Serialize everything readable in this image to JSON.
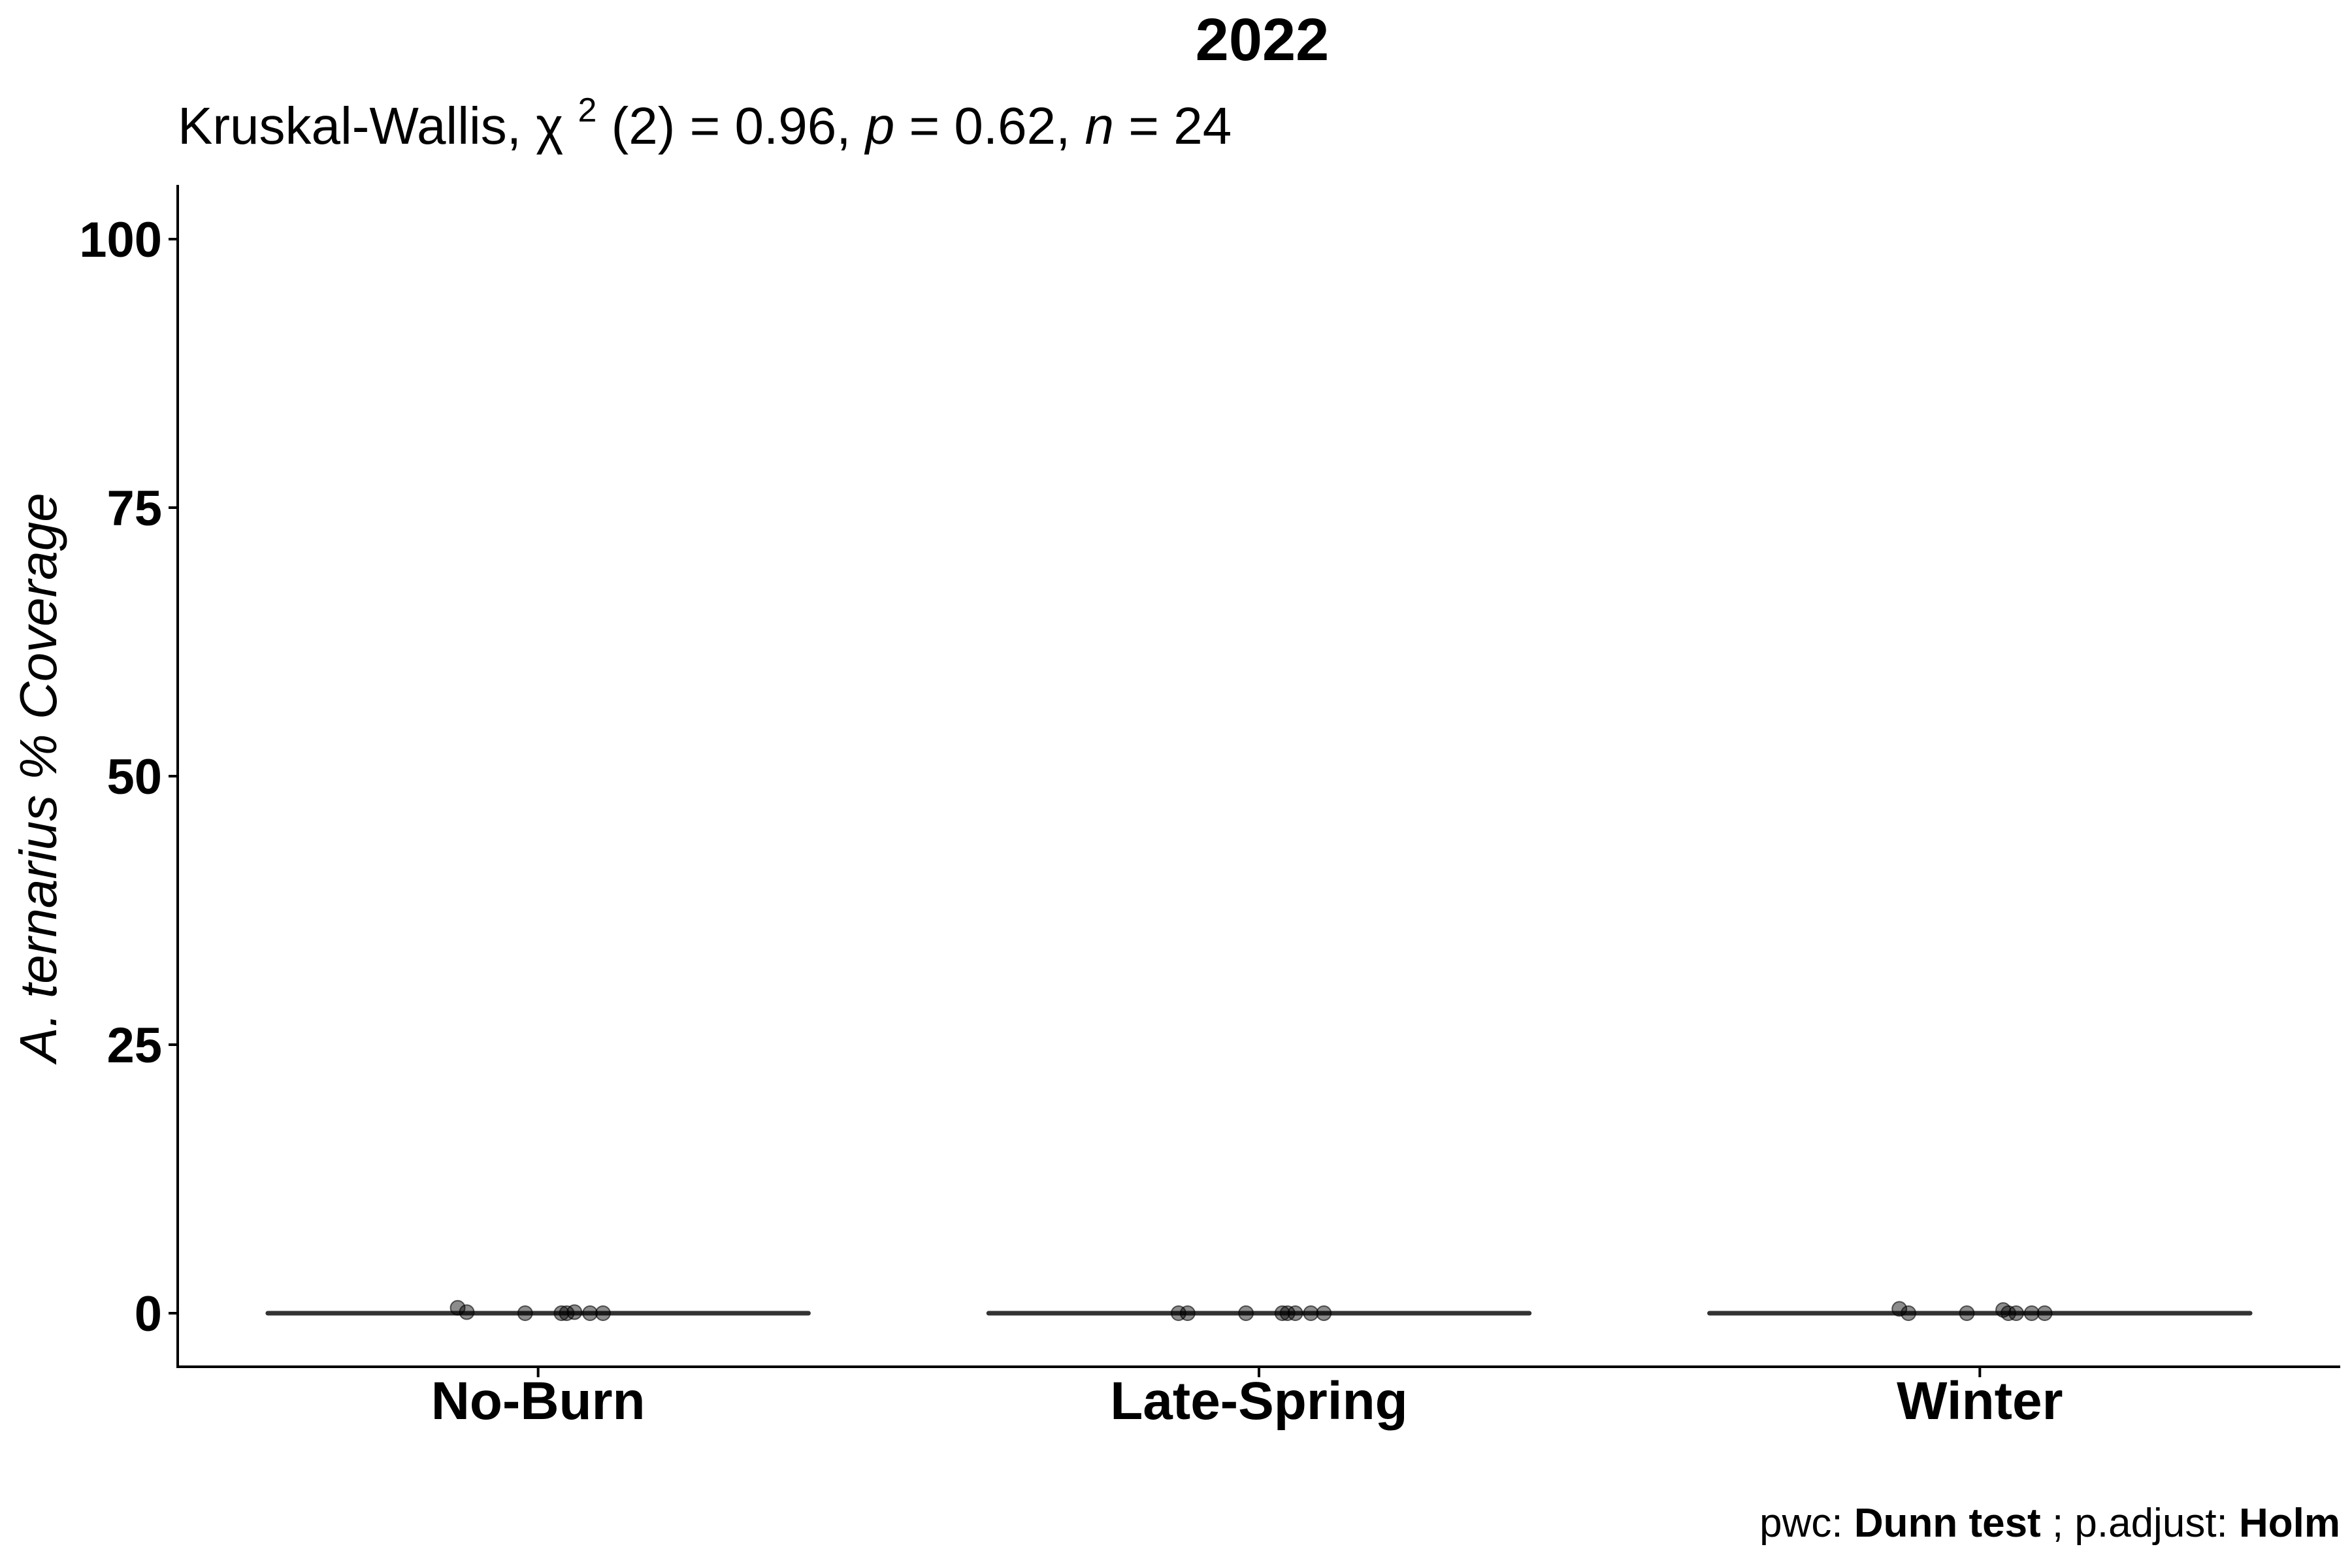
{
  "chart_data": {
    "type": "scatter",
    "title": "2022",
    "subtitle": {
      "prefix": "Kruskal-Wallis, ",
      "chi": "χ",
      "chi_sup": "2",
      "chi_rest": "(2) = 0.96, ",
      "p_symbol": "p",
      "p_rest": " = 0.62, ",
      "n_symbol": "n",
      "n_rest": " = 24"
    },
    "ylabel": "A. ternarius % Coverage",
    "xlabel": "",
    "ylim": [
      -5,
      105
    ],
    "yticks": [
      "0",
      "25",
      "50",
      "75",
      "100"
    ],
    "ytick_values": [
      0,
      25,
      50,
      75,
      100
    ],
    "categories": [
      "No-Burn",
      "Late-Spring",
      "Winter"
    ],
    "medians": [
      0,
      0,
      0
    ],
    "series": [
      {
        "category": "No-Burn",
        "values": [
          0.5,
          0.1,
          0.0,
          0.0,
          0.0,
          0.1,
          0.0,
          0.0
        ]
      },
      {
        "category": "Late-Spring",
        "values": [
          0.0,
          0.0,
          0.0,
          0.0,
          0.0,
          0.0,
          0.0,
          0.0
        ]
      },
      {
        "category": "Winter",
        "values": [
          0.4,
          0.0,
          0.0,
          0.3,
          0.0,
          0.0,
          0.0,
          0.0
        ]
      }
    ],
    "caption": {
      "pwc_label": "pwc: ",
      "pwc_value": "Dunn test",
      "sep": "; p.adjust: ",
      "adjust_value": "Holm"
    },
    "grid": false,
    "colors": {
      "axis": "#000000",
      "median_line": "#333333",
      "point": "#000000"
    }
  }
}
